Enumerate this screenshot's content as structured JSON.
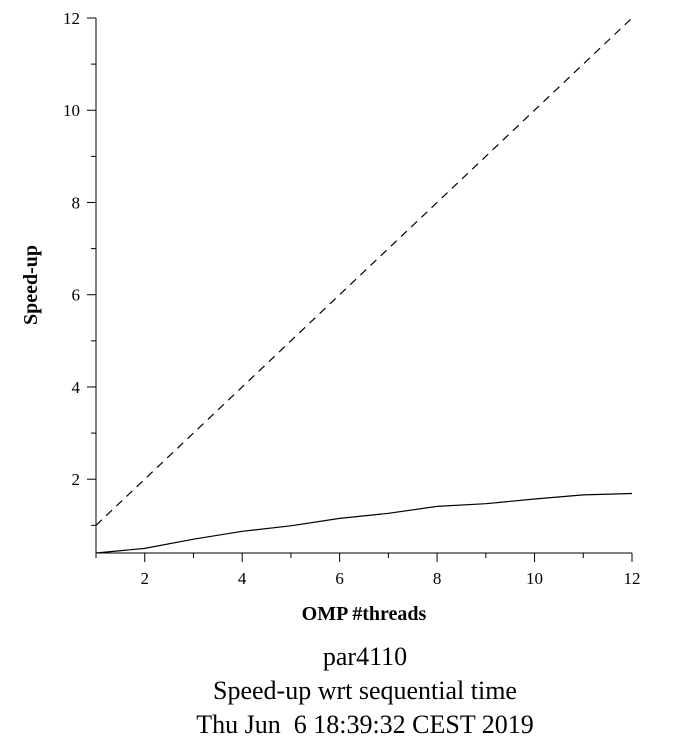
{
  "chart_data": {
    "type": "line",
    "xlabel": "OMP #threads",
    "ylabel": "Speed-up",
    "xlim": [
      1,
      12
    ],
    "ylim": [
      0.4,
      12
    ],
    "x_ticks": [
      2,
      4,
      6,
      8,
      10,
      12
    ],
    "y_ticks": [
      2,
      4,
      6,
      8,
      10,
      12
    ],
    "grid": false,
    "series": [
      {
        "style": "dashed",
        "x": [
          1,
          12
        ],
        "y": [
          1,
          12
        ]
      },
      {
        "style": "solid",
        "x": [
          1,
          2,
          3,
          4,
          5,
          6,
          7,
          8,
          9,
          10,
          11,
          12
        ],
        "y": [
          0.4,
          0.5,
          0.7,
          0.87,
          0.99,
          1.15,
          1.26,
          1.41,
          1.47,
          1.57,
          1.66,
          1.69
        ]
      }
    ]
  },
  "caption": {
    "line1": "par4110",
    "line2": "Speed-up wrt sequential time",
    "line3": "Thu Jun  6 18:39:32 CEST 2019"
  }
}
